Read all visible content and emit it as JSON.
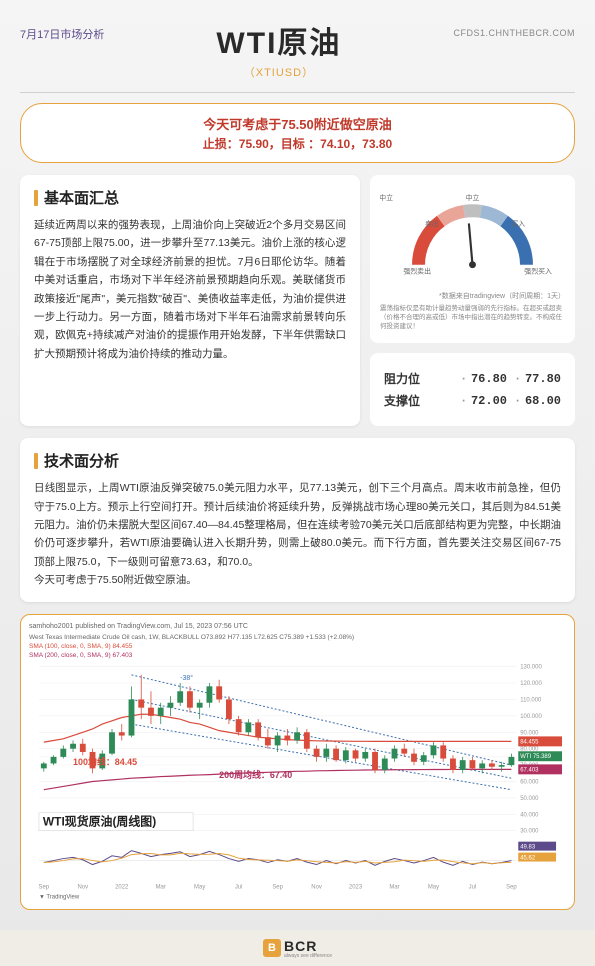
{
  "header": {
    "date": "7月17日市场分析",
    "title": "WTI原油",
    "ticker": "（XTIUSD）",
    "url": "CFDS1.CHNTHEBCR.COM"
  },
  "strategy": {
    "line1": "今天可考虑于75.50附近做空原油",
    "line2": "止损：75.90，目标 ：74.10，73.80"
  },
  "fundamentals": {
    "title": "基本面汇总",
    "body": "延续近两周以来的强势表现，上周油价向上突破近2个多月交易区间67-75顶部上限75.00，进一步攀升至77.13美元。油价上涨的核心逻辑在于市场摆脱了对全球经济前景的担忧。7月6日耶伦访华。随着中美对话重启，市场对下半年经济前景预期趋向乐观。美联储货币政策接近\"尾声\"，美元指数\"破百\"、美债收益率走低，为油价提供进一步上行动力。另一方面，随着市场对下半年石油需求前景转向乐观，欧佩克+持续减产对油价的提振作用开始发酵，下半年供需缺口扩大预期预计将成为油价持续的推动力量。"
  },
  "gauge": {
    "labels": {
      "strong_sell": "强烈卖出",
      "sell": "卖出",
      "neutral": "中立",
      "buy": "买入",
      "strong_buy": "强烈买入"
    },
    "needle_angle": -5,
    "caption": "*数据来自tradingview（时间周期：1天）",
    "desc": "震荡指标仅是有助计量趋势动量强弱的先行指标。在超买或超卖（价格不合理的高或低）市场中指出潜在的趋势转变。不构成任何投资建议！",
    "arc_colors": {
      "sell": "#d94b3a",
      "neutral": "#bfbfbf",
      "buy": "#3a6fb0"
    }
  },
  "levels": {
    "resistance": {
      "label": "阻力位",
      "v1": "76.80",
      "v2": "77.80"
    },
    "support": {
      "label": "支撑位",
      "v1": "72.00",
      "v2": "68.00"
    }
  },
  "technical": {
    "title": "技术面分析",
    "body": "日线图显示，上周WTI原油反弹突破75.0美元阻力水平，见77.13美元，创下三个月高点。周末收市前急挫，但仍守于75.0上方。预示上行空间打开。预计后续油价将延续升势，反弹挑战市场心理80美元关口，其后则为84.51美元阻力。油价仍未摆脱大型区间67.40—84.45整理格局，但在连续考验70美元关口后底部结构更为完整，中长期油价仍可逐步攀升，若WTI原油要确认进入长期升势，则需上破80.0美元。而下行方面，首先要关注交易区间67-75顶部上限75.0，下一级则可留意73.63，和70.0。\n今天可考虑于75.50附近做空原油。"
  },
  "chart": {
    "header": "samhoho2001 published on TradingView.com, Jul 15, 2023 07:56 UTC",
    "subhead1": "West Texas Intermediate Crude Oil cash, 1W, BLACKBULL  O73.892 H77.135 L72.625 C75.389 +1.533 (+2.08%)",
    "subhead2_a": "SMA (100, close, 0, SMA, 9)  84.455",
    "subhead2_b": "SMA (200, close, 0, SMA, 9)  67.403",
    "title_overlay": "WTI现货原油(周线图)",
    "ma100_label": "100均线：84.45",
    "ma200_label": "200周均线：67.40",
    "angle_label": "-38°",
    "y_axis": {
      "min": 30,
      "max": 130,
      "ticks": [
        30,
        40,
        50,
        60,
        70,
        75,
        80,
        90,
        100,
        110,
        120,
        130
      ]
    },
    "x_labels": [
      "Sep",
      "Nov",
      "2022",
      "Mar",
      "May",
      "Jul",
      "Sep",
      "Nov",
      "2023",
      "Mar",
      "May",
      "Jul",
      "Sep"
    ],
    "price_badges": [
      {
        "v": "84.455",
        "bg": "#d94b3a",
        "y": 84.45
      },
      {
        "v": "WTI 75.389",
        "bg": "#2e8b57",
        "y": 75.39
      },
      {
        "v": "67.403",
        "bg": "#b03060",
        "y": 67.4
      }
    ],
    "rsi_badges": [
      {
        "v": "49.83",
        "bg": "#5c4a8a"
      },
      {
        "v": "45.62",
        "bg": "#e6a23c"
      }
    ],
    "candles": [
      {
        "x": 0,
        "o": 68,
        "h": 72,
        "l": 66,
        "c": 71,
        "up": true
      },
      {
        "x": 1,
        "o": 71,
        "h": 76,
        "l": 70,
        "c": 75,
        "up": true
      },
      {
        "x": 2,
        "o": 75,
        "h": 82,
        "l": 74,
        "c": 80,
        "up": true
      },
      {
        "x": 3,
        "o": 80,
        "h": 85,
        "l": 78,
        "c": 83,
        "up": true
      },
      {
        "x": 4,
        "o": 83,
        "h": 86,
        "l": 76,
        "c": 78,
        "up": false
      },
      {
        "x": 5,
        "o": 78,
        "h": 80,
        "l": 65,
        "c": 68,
        "up": false
      },
      {
        "x": 6,
        "o": 68,
        "h": 79,
        "l": 67,
        "c": 77,
        "up": true
      },
      {
        "x": 7,
        "o": 77,
        "h": 92,
        "l": 76,
        "c": 90,
        "up": true
      },
      {
        "x": 8,
        "o": 90,
        "h": 95,
        "l": 85,
        "c": 88,
        "up": false
      },
      {
        "x": 9,
        "o": 88,
        "h": 118,
        "l": 87,
        "c": 110,
        "up": true
      },
      {
        "x": 10,
        "o": 110,
        "h": 125,
        "l": 98,
        "c": 105,
        "up": false
      },
      {
        "x": 11,
        "o": 105,
        "h": 115,
        "l": 95,
        "c": 100,
        "up": false
      },
      {
        "x": 12,
        "o": 100,
        "h": 108,
        "l": 95,
        "c": 105,
        "up": true
      },
      {
        "x": 13,
        "o": 105,
        "h": 112,
        "l": 100,
        "c": 108,
        "up": true
      },
      {
        "x": 14,
        "o": 108,
        "h": 120,
        "l": 106,
        "c": 115,
        "up": true
      },
      {
        "x": 15,
        "o": 115,
        "h": 118,
        "l": 102,
        "c": 105,
        "up": false
      },
      {
        "x": 16,
        "o": 105,
        "h": 110,
        "l": 98,
        "c": 108,
        "up": true
      },
      {
        "x": 17,
        "o": 108,
        "h": 120,
        "l": 105,
        "c": 118,
        "up": true
      },
      {
        "x": 18,
        "o": 118,
        "h": 122,
        "l": 108,
        "c": 110,
        "up": false
      },
      {
        "x": 19,
        "o": 110,
        "h": 112,
        "l": 95,
        "c": 98,
        "up": false
      },
      {
        "x": 20,
        "o": 98,
        "h": 100,
        "l": 88,
        "c": 90,
        "up": false
      },
      {
        "x": 21,
        "o": 90,
        "h": 98,
        "l": 88,
        "c": 96,
        "up": true
      },
      {
        "x": 22,
        "o": 96,
        "h": 98,
        "l": 85,
        "c": 87,
        "up": false
      },
      {
        "x": 23,
        "o": 87,
        "h": 92,
        "l": 80,
        "c": 82,
        "up": false
      },
      {
        "x": 24,
        "o": 82,
        "h": 90,
        "l": 78,
        "c": 88,
        "up": true
      },
      {
        "x": 25,
        "o": 88,
        "h": 92,
        "l": 82,
        "c": 85,
        "up": false
      },
      {
        "x": 26,
        "o": 85,
        "h": 93,
        "l": 83,
        "c": 90,
        "up": true
      },
      {
        "x": 27,
        "o": 90,
        "h": 92,
        "l": 78,
        "c": 80,
        "up": false
      },
      {
        "x": 28,
        "o": 80,
        "h": 82,
        "l": 72,
        "c": 75,
        "up": false
      },
      {
        "x": 29,
        "o": 75,
        "h": 83,
        "l": 72,
        "c": 80,
        "up": true
      },
      {
        "x": 30,
        "o": 80,
        "h": 82,
        "l": 72,
        "c": 73,
        "up": false
      },
      {
        "x": 31,
        "o": 73,
        "h": 81,
        "l": 71,
        "c": 79,
        "up": true
      },
      {
        "x": 32,
        "o": 79,
        "h": 80,
        "l": 72,
        "c": 74,
        "up": false
      },
      {
        "x": 33,
        "o": 74,
        "h": 80,
        "l": 72,
        "c": 78,
        "up": true
      },
      {
        "x": 34,
        "o": 78,
        "h": 80,
        "l": 65,
        "c": 67,
        "up": false
      },
      {
        "x": 35,
        "o": 67,
        "h": 76,
        "l": 65,
        "c": 74,
        "up": true
      },
      {
        "x": 36,
        "o": 74,
        "h": 82,
        "l": 72,
        "c": 80,
        "up": true
      },
      {
        "x": 37,
        "o": 80,
        "h": 83,
        "l": 75,
        "c": 77,
        "up": false
      },
      {
        "x": 38,
        "o": 77,
        "h": 80,
        "l": 70,
        "c": 72,
        "up": false
      },
      {
        "x": 39,
        "o": 72,
        "h": 78,
        "l": 70,
        "c": 76,
        "up": true
      },
      {
        "x": 40,
        "o": 76,
        "h": 84,
        "l": 74,
        "c": 82,
        "up": true
      },
      {
        "x": 41,
        "o": 82,
        "h": 84,
        "l": 72,
        "c": 74,
        "up": false
      },
      {
        "x": 42,
        "o": 74,
        "h": 76,
        "l": 65,
        "c": 67,
        "up": false
      },
      {
        "x": 43,
        "o": 67,
        "h": 75,
        "l": 65,
        "c": 73,
        "up": true
      },
      {
        "x": 44,
        "o": 73,
        "h": 75,
        "l": 67,
        "c": 68,
        "up": false
      },
      {
        "x": 45,
        "o": 68,
        "h": 73,
        "l": 65,
        "c": 71,
        "up": true
      },
      {
        "x": 46,
        "o": 71,
        "h": 73,
        "l": 67,
        "c": 69,
        "up": false
      },
      {
        "x": 47,
        "o": 69,
        "h": 72,
        "l": 66,
        "c": 70,
        "up": true
      },
      {
        "x": 48,
        "o": 70,
        "h": 77,
        "l": 69,
        "c": 75,
        "up": true
      }
    ],
    "ma100": [
      84,
      85,
      86,
      88,
      90,
      92,
      95,
      97,
      99,
      100,
      101,
      101,
      100,
      99,
      98,
      96,
      95,
      93,
      91,
      90,
      89,
      88,
      87,
      86.5,
      86,
      85.5,
      85.2,
      85,
      84.8,
      84.7,
      84.6,
      84.55,
      84.5,
      84.48,
      84.47,
      84.46,
      84.46,
      84.455,
      84.455,
      84.455,
      84.455,
      84.455,
      84.455,
      84.455,
      84.455,
      84.455,
      84.455,
      84.455,
      84.455
    ],
    "ma200": [
      55,
      56,
      57,
      58,
      59,
      60,
      60.5,
      61,
      61.5,
      62,
      62.3,
      62.6,
      63,
      63.2,
      63.5,
      63.8,
      64,
      64.2,
      64.5,
      64.8,
      65,
      65.2,
      65.4,
      65.6,
      65.8,
      66,
      66.2,
      66.3,
      66.5,
      66.6,
      66.7,
      66.8,
      66.9,
      67,
      67.05,
      67.1,
      67.15,
      67.2,
      67.25,
      67.28,
      67.3,
      67.32,
      67.34,
      67.36,
      67.37,
      67.38,
      67.39,
      67.4,
      67.4
    ],
    "rsi": [
      45,
      50,
      55,
      58,
      52,
      40,
      48,
      62,
      58,
      75,
      68,
      60,
      65,
      68,
      72,
      60,
      65,
      73,
      65,
      55,
      48,
      55,
      52,
      45,
      52,
      48,
      55,
      46,
      40,
      50,
      42,
      50,
      44,
      50,
      38,
      48,
      55,
      50,
      44,
      50,
      58,
      46,
      38,
      48,
      40,
      46,
      42,
      45,
      50
    ],
    "colors": {
      "up": "#2e8b57",
      "down": "#d94b3a",
      "ma100": "#d94b3a",
      "ma200": "#b03060",
      "channel": "#3a6fb0",
      "grid": "#eeeeee",
      "axis": "#999999",
      "rsi": "#5c4a8a",
      "rsi_ma": "#e6a23c"
    },
    "footer": "TradingView"
  },
  "footer": {
    "brand": "BCR",
    "tagline": "always see difference"
  }
}
